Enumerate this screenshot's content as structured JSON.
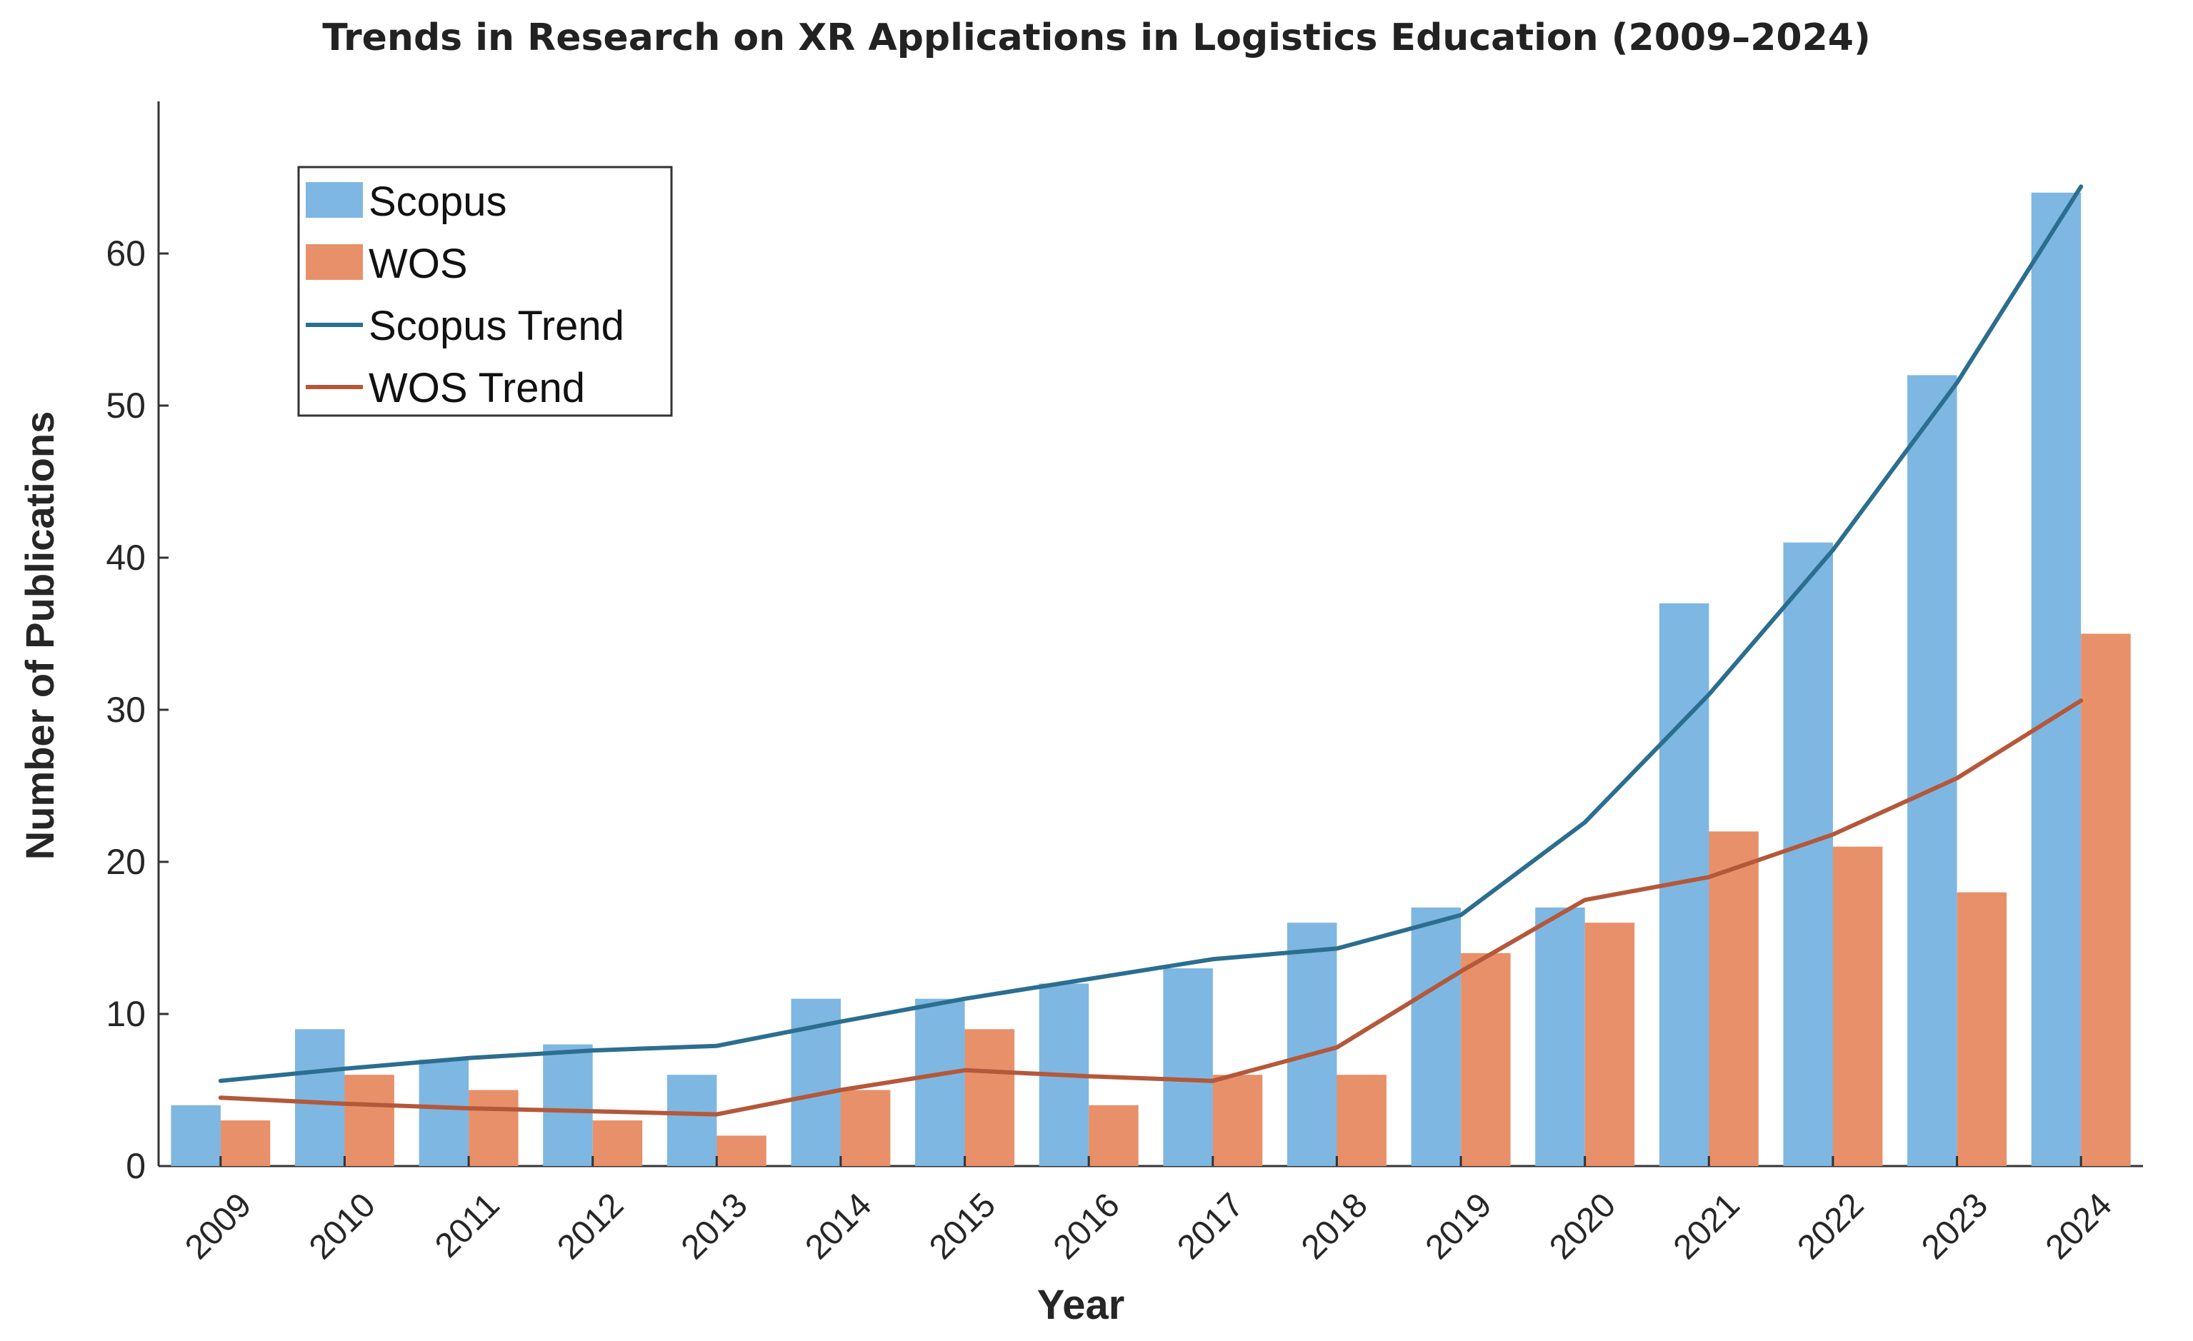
{
  "chart_data": {
    "type": "bar",
    "title": "Trends in Research on XR Applications in Logistics Education (2009–2024)",
    "xlabel": "Year",
    "ylabel": "Number  of  Publications",
    "ylim": [
      0,
      70
    ],
    "yticks": [
      0,
      10,
      20,
      30,
      40,
      50,
      60
    ],
    "categories": [
      "2009",
      "2010",
      "2011",
      "2012",
      "2013",
      "2014",
      "2015",
      "2016",
      "2017",
      "2018",
      "2019",
      "2020",
      "2021",
      "2022",
      "2023",
      "2024"
    ],
    "series": [
      {
        "name": "Scopus",
        "kind": "bar",
        "color": "#7eb7e2",
        "values": [
          4,
          9,
          7,
          8,
          6,
          11,
          11,
          12,
          13,
          16,
          17,
          17,
          37,
          41,
          52,
          64
        ]
      },
      {
        "name": "WOS",
        "kind": "bar",
        "color": "#e8906a",
        "values": [
          3,
          6,
          5,
          3,
          2,
          5,
          9,
          4,
          6,
          6,
          14,
          16,
          22,
          21,
          18,
          35
        ]
      },
      {
        "name": "Scopus Trend",
        "kind": "line",
        "color": "#2b6e8f",
        "values": [
          5.6,
          6.4,
          7.1,
          7.6,
          7.9,
          9.5,
          11.0,
          12.3,
          13.6,
          14.3,
          16.5,
          22.6,
          31.0,
          40.5,
          51.5,
          64.4
        ]
      },
      {
        "name": "WOS Trend",
        "kind": "line",
        "color": "#b4583a",
        "values": [
          4.5,
          4.1,
          3.8,
          3.6,
          3.4,
          5.0,
          6.3,
          5.9,
          5.6,
          7.8,
          12.8,
          17.5,
          19.0,
          21.8,
          25.5,
          30.6
        ]
      }
    ],
    "legend": {
      "position": "top-left",
      "entries": [
        "Scopus",
        "WOS",
        "Scopus Trend",
        "WOS Trend"
      ]
    },
    "grid": false
  }
}
